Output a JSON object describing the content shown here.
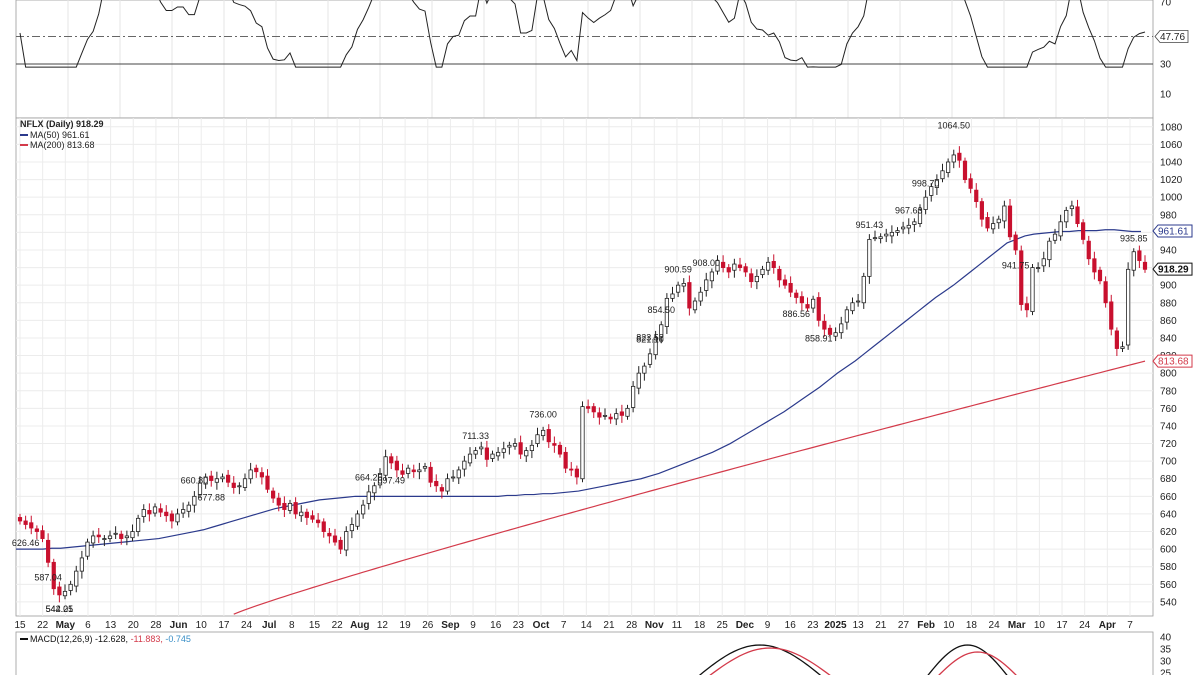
{
  "chart_data": {
    "type": "candlestick",
    "ticker_label": "NFLX (Daily) 918.29",
    "legend": [
      {
        "label": "MA(50) 961.61",
        "color": "#2b3a8c"
      },
      {
        "label": "MA(200) 813.68",
        "color": "#d33a4a"
      }
    ],
    "price_axis": {
      "ticks": [
        540,
        560,
        580,
        600,
        620,
        640,
        660,
        680,
        700,
        720,
        740,
        760,
        780,
        800,
        820,
        840,
        860,
        880,
        900,
        920,
        940,
        960,
        980,
        1000,
        1020,
        1040,
        1060,
        1080
      ],
      "ylim": [
        524,
        1090
      ]
    },
    "last_price": "918.29",
    "ma50_last": "961.61",
    "ma200_last": "813.68",
    "date_labels": [
      {
        "text": "15",
        "bold": false
      },
      {
        "text": "22",
        "bold": false
      },
      {
        "text": "May",
        "bold": true
      },
      {
        "text": "6",
        "bold": false
      },
      {
        "text": "13",
        "bold": false
      },
      {
        "text": "20",
        "bold": false
      },
      {
        "text": "28",
        "bold": false
      },
      {
        "text": "Jun",
        "bold": true
      },
      {
        "text": "10",
        "bold": false
      },
      {
        "text": "17",
        "bold": false
      },
      {
        "text": "24",
        "bold": false
      },
      {
        "text": "Jul",
        "bold": true
      },
      {
        "text": "8",
        "bold": false
      },
      {
        "text": "15",
        "bold": false
      },
      {
        "text": "22",
        "bold": false
      },
      {
        "text": "Aug",
        "bold": true
      },
      {
        "text": "12",
        "bold": false
      },
      {
        "text": "19",
        "bold": false
      },
      {
        "text": "26",
        "bold": false
      },
      {
        "text": "Sep",
        "bold": true
      },
      {
        "text": "9",
        "bold": false
      },
      {
        "text": "16",
        "bold": false
      },
      {
        "text": "23",
        "bold": false
      },
      {
        "text": "Oct",
        "bold": true
      },
      {
        "text": "7",
        "bold": false
      },
      {
        "text": "14",
        "bold": false
      },
      {
        "text": "21",
        "bold": false
      },
      {
        "text": "28",
        "bold": false
      },
      {
        "text": "Nov",
        "bold": true
      },
      {
        "text": "11",
        "bold": false
      },
      {
        "text": "18",
        "bold": false
      },
      {
        "text": "25",
        "bold": false
      },
      {
        "text": "Dec",
        "bold": true
      },
      {
        "text": "9",
        "bold": false
      },
      {
        "text": "16",
        "bold": false
      },
      {
        "text": "23",
        "bold": false
      },
      {
        "text": "2025",
        "bold": true
      },
      {
        "text": "13",
        "bold": false
      },
      {
        "text": "21",
        "bold": false
      },
      {
        "text": "27",
        "bold": false
      },
      {
        "text": "Feb",
        "bold": true
      },
      {
        "text": "10",
        "bold": false
      },
      {
        "text": "18",
        "bold": false
      },
      {
        "text": "24",
        "bold": false
      },
      {
        "text": "Mar",
        "bold": true
      },
      {
        "text": "10",
        "bold": false
      },
      {
        "text": "17",
        "bold": false
      },
      {
        "text": "24",
        "bold": false
      },
      {
        "text": "Apr",
        "bold": true
      },
      {
        "text": "7",
        "bold": false
      }
    ],
    "annotations": [
      {
        "text": "542.01",
        "value": 542.01
      },
      {
        "text": "544.25",
        "value": 544.25
      },
      {
        "text": "626.46",
        "value": 626.46
      },
      {
        "text": "664.25",
        "value": 664.25
      },
      {
        "text": "697.49",
        "value": 697.49
      },
      {
        "text": "587.04",
        "value": 587.04
      },
      {
        "text": "711.33",
        "value": 711.33
      },
      {
        "text": "660.80",
        "value": 660.8
      },
      {
        "text": "736.00",
        "value": 736.0
      },
      {
        "text": "677.88",
        "value": 677.88
      },
      {
        "text": "908.00",
        "value": 908.0
      },
      {
        "text": "858.91",
        "value": 858.91
      },
      {
        "text": "941.75",
        "value": 941.75
      },
      {
        "text": "886.56",
        "value": 886.56
      },
      {
        "text": "935.85",
        "value": 935.85
      },
      {
        "text": "823.52",
        "value": 823.52
      },
      {
        "text": "1064.50",
        "value": 1064.5
      },
      {
        "text": "967.63",
        "value": 967.63
      },
      {
        "text": "854.50",
        "value": 854.5
      },
      {
        "text": "998.70",
        "value": 998.7
      },
      {
        "text": "951.43",
        "value": 951.43
      },
      {
        "text": "900.59",
        "value": 900.59
      },
      {
        "text": "821.10",
        "value": 821.1
      }
    ],
    "price_close": [
      632,
      628,
      624,
      620,
      612,
      585,
      555,
      548,
      552,
      560,
      575,
      590,
      608,
      615,
      614,
      612,
      615,
      618,
      612,
      615,
      620,
      635,
      645,
      640,
      648,
      642,
      638,
      632,
      640,
      645,
      650,
      660,
      675,
      682,
      678,
      680,
      682,
      676,
      670,
      672,
      680,
      690,
      688,
      682,
      668,
      658,
      650,
      645,
      652,
      640,
      642,
      636,
      634,
      630,
      620,
      615,
      608,
      600,
      620,
      628,
      640,
      650,
      665,
      672,
      686,
      705,
      698,
      690,
      685,
      692,
      688,
      690,
      694,
      676,
      672,
      666,
      680,
      682,
      690,
      700,
      708,
      712,
      716,
      702,
      708,
      710,
      714,
      718,
      720,
      708,
      712,
      718,
      730,
      735,
      722,
      718,
      708,
      692,
      690,
      682,
      762,
      760,
      756,
      750,
      752,
      748,
      754,
      752,
      760,
      785,
      800,
      808,
      822,
      840,
      855,
      885,
      890,
      900,
      902,
      874,
      882,
      892,
      906,
      915,
      928,
      920,
      915,
      924,
      920,
      915,
      904,
      910,
      918,
      926,
      920,
      906,
      900,
      892,
      886,
      880,
      874,
      884,
      860,
      850,
      844,
      846,
      856,
      872,
      880,
      882,
      910,
      952,
      954,
      955,
      958,
      960,
      962,
      966,
      968,
      972,
      986,
      1000,
      1012,
      1020,
      1030,
      1040,
      1048,
      1042,
      1020,
      1010,
      995,
      975,
      965,
      970,
      975,
      990,
      955,
      940,
      878,
      872,
      920,
      920,
      930,
      950,
      958,
      972,
      985,
      990,
      970,
      952,
      930,
      915,
      905,
      880,
      850,
      828,
      830,
      918,
      938,
      928,
      918
    ],
    "ma50": [
      600,
      600,
      600,
      600,
      601,
      601,
      602,
      603,
      604,
      605,
      606,
      607,
      608,
      609,
      610,
      611,
      612,
      614,
      616,
      618,
      620,
      622,
      625,
      628,
      631,
      634,
      637,
      640,
      643,
      646,
      648,
      650,
      652,
      654,
      656,
      657,
      658,
      659,
      660,
      660,
      660,
      660,
      660,
      660,
      660,
      660,
      660,
      660,
      660,
      660,
      660,
      660,
      660,
      660,
      660,
      661,
      661,
      662,
      662,
      663,
      663,
      664,
      665,
      666,
      668,
      670,
      672,
      674,
      676,
      678,
      680,
      683,
      686,
      690,
      694,
      698,
      702,
      706,
      710,
      715,
      720,
      726,
      732,
      738,
      744,
      750,
      756,
      763,
      770,
      777,
      784,
      792,
      800,
      807,
      814,
      822,
      830,
      838,
      846,
      854,
      862,
      870,
      878,
      886,
      893,
      900,
      908,
      916,
      924,
      932,
      940,
      948,
      952,
      956,
      958,
      959,
      960,
      961,
      961,
      962,
      962,
      962,
      963,
      963,
      962,
      961,
      961
    ],
    "ma200_start": 526,
    "ma200_end": 813.68,
    "rsi": {
      "ticks": [
        "70",
        "47.76",
        "30",
        "10"
      ],
      "last": "47.76"
    },
    "macd": {
      "label_prefix": "MACD(12,26,9)",
      "macd_value": "-12.628",
      "signal_value": "-11.883",
      "hist_value": "-0.745",
      "ticks": [
        "40",
        "35",
        "30",
        "25"
      ]
    }
  }
}
